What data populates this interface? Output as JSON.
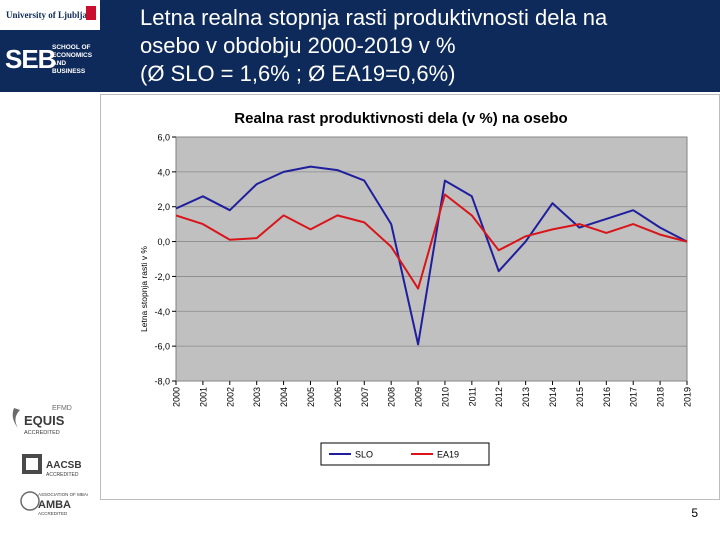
{
  "header": {
    "title_lines": [
      "Letna realna stopnja rasti produktivnosti dela na",
      "osebo v obdobju 2000-2019 v %",
      "(Ø SLO = 1,6% ; Ø EA19=0,6%)"
    ],
    "university": "University of Ljubljana",
    "school_logo": "SEB",
    "school_name_lines": [
      "SCHOOL OF",
      "ECONOMICS",
      "AND BUSINESS"
    ]
  },
  "accreditations": [
    "EFMD EQUIS ACCREDITED",
    "AACSB ACCREDITED",
    "ASSOCIATION OF MBAS ACCREDITED"
  ],
  "page_number": "5",
  "colors": {
    "header_bg": "#0e2a5a",
    "plot_bg": "#c0c0c0",
    "slo": "#1f1f9e",
    "ea19": "#d9141a"
  },
  "chart_data": {
    "type": "line",
    "title": "Realna rast produktivnosti dela (v %) na osebo",
    "ylabel": "Letna stopnja rasti v %",
    "xlabel": "",
    "categories": [
      "2000",
      "2001",
      "2002",
      "2003",
      "2004",
      "2005",
      "2006",
      "2007",
      "2008",
      "2009",
      "2010",
      "2011",
      "2012",
      "2013",
      "2014",
      "2015",
      "2016",
      "2017",
      "2018",
      "2019"
    ],
    "ylim": [
      -8,
      6
    ],
    "yticks": [
      -8,
      -6,
      -4,
      -2,
      0,
      2,
      4,
      6
    ],
    "ytick_labels": [
      "-8,0",
      "-6,0",
      "-4,0",
      "-2,0",
      "0,0",
      "2,0",
      "4,0",
      "6,0"
    ],
    "grid": true,
    "legend": "bottom",
    "series": [
      {
        "name": "SLO",
        "values": [
          1.9,
          2.6,
          1.8,
          3.3,
          4.0,
          4.3,
          4.1,
          3.5,
          1.0,
          -5.9,
          3.5,
          2.6,
          -1.7,
          0.0,
          2.2,
          0.8,
          1.3,
          1.8,
          0.8,
          0.0
        ]
      },
      {
        "name": "EA19",
        "values": [
          1.5,
          1.0,
          0.1,
          0.2,
          1.5,
          0.7,
          1.5,
          1.1,
          -0.3,
          -2.7,
          2.7,
          1.5,
          -0.5,
          0.3,
          0.7,
          1.0,
          0.5,
          1.0,
          0.4,
          0.0
        ]
      }
    ]
  }
}
